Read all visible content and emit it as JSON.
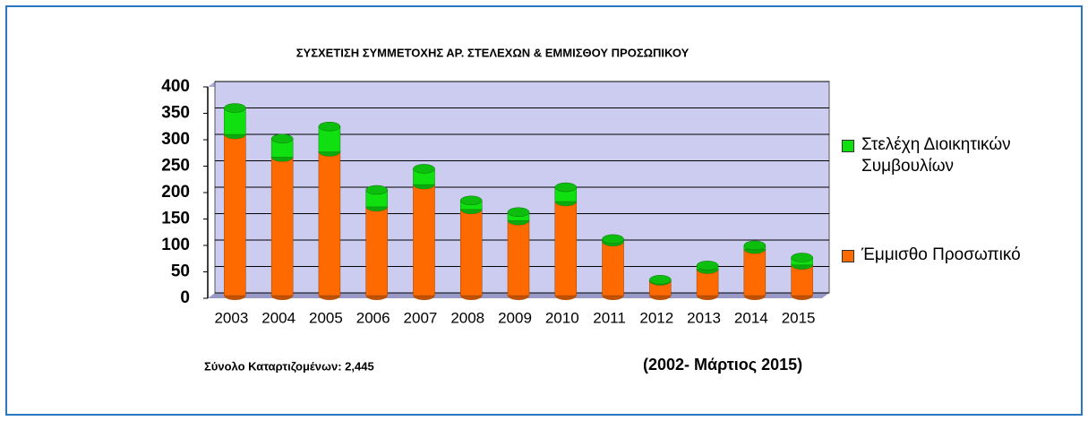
{
  "chart_data": {
    "type": "stacked-bar",
    "title": "ΣΥΣΧΕΤΙΣΗ ΣΥΜΜΕΤΟΧΗΣ ΑΡ. ΣΤΕΛΕΧΩΝ & ΕΜΜΙΣΘΟΥ ΠΡΟΣΩΠΙΚΟΥ",
    "categories": [
      "2003",
      "2004",
      "2005",
      "2006",
      "2007",
      "2008",
      "2009",
      "2010",
      "2011",
      "2012",
      "2013",
      "2014",
      "2015"
    ],
    "series": [
      {
        "name": "Έμμισθο Προσωπικό",
        "color": "#ff6a00",
        "values": [
          305,
          262,
          272,
          168,
          210,
          163,
          142,
          178,
          102,
          28,
          50,
          88,
          58
        ]
      },
      {
        "name": "Στελέχη Διοικητικών Συμβουλίων",
        "color": "#10e010",
        "values": [
          50,
          35,
          48,
          32,
          30,
          17,
          16,
          27,
          5,
          2,
          7,
          7,
          14
        ]
      }
    ],
    "ylim": [
      0,
      400
    ],
    "yticks": [
      0,
      50,
      100,
      150,
      200,
      250,
      300,
      350,
      400
    ],
    "grid": true,
    "annotations": [
      "Σύνολο Καταρτιζομένων:  2,445",
      "(2002- Μάρτιος 2015)"
    ]
  }
}
